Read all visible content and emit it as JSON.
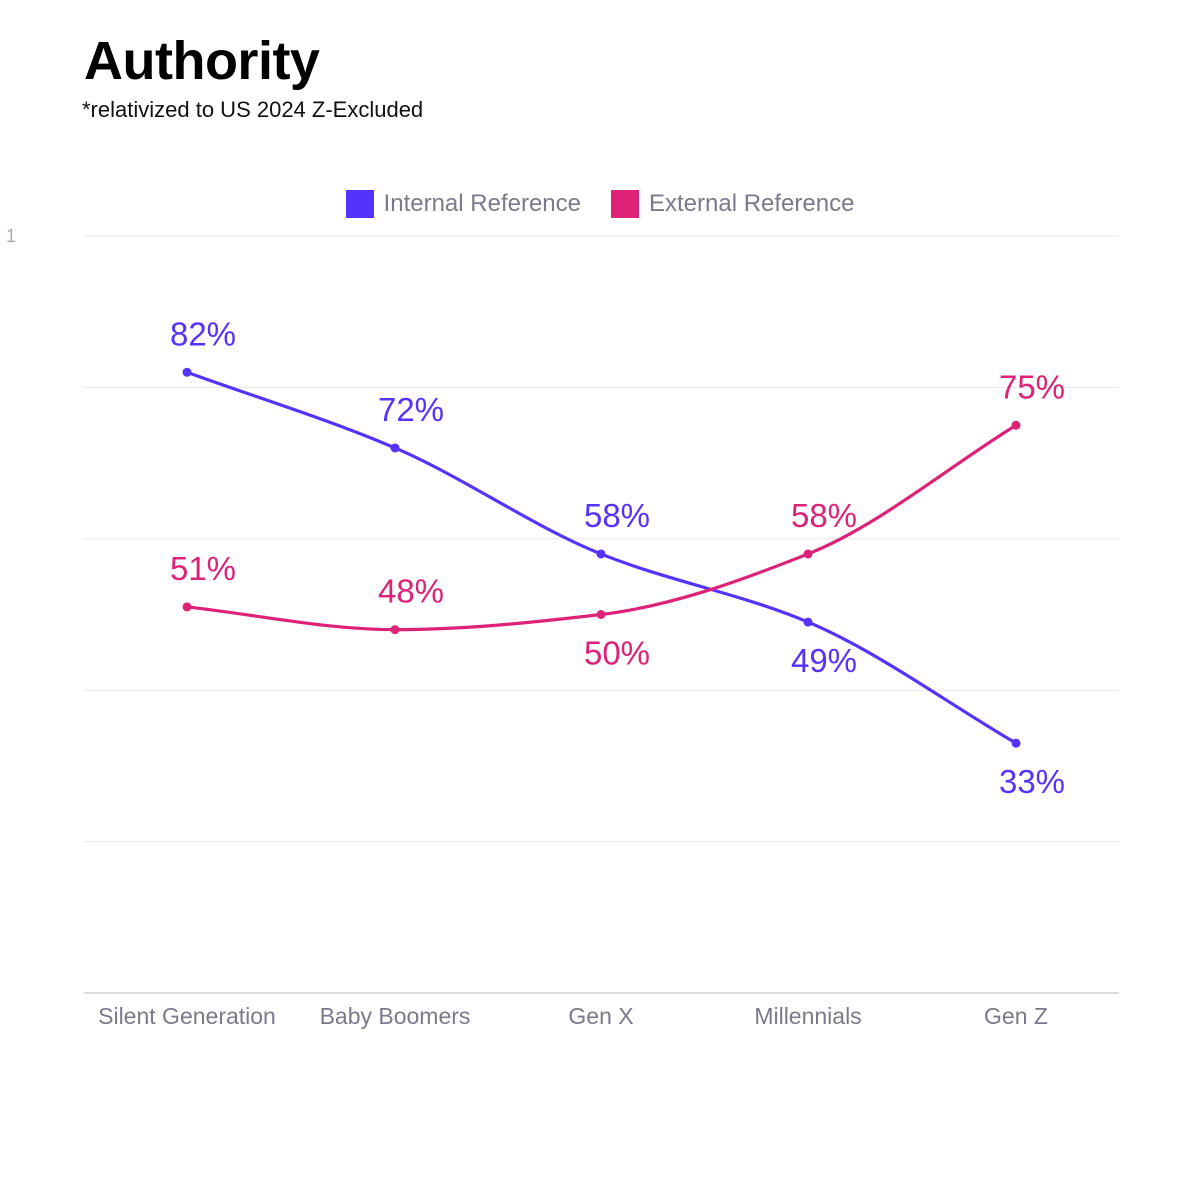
{
  "header": {
    "title": "Authority",
    "subtitle": "*relativized to US 2024 Z-Excluded",
    "stray_label": "1"
  },
  "chart_data": {
    "type": "line",
    "categories": [
      "Silent Generation",
      "Baby Boomers",
      "Gen X",
      "Millennials",
      "Gen Z"
    ],
    "series": [
      {
        "name": "Internal Reference",
        "color": "#5533ff",
        "values": [
          82,
          72,
          58,
          49,
          33
        ],
        "labels": [
          "82%",
          "72%",
          "58%",
          "49%",
          "33%"
        ],
        "label_positions": [
          "above",
          "above",
          "above",
          "below",
          "below"
        ]
      },
      {
        "name": "External Reference",
        "color": "#dd2277",
        "values": [
          51,
          48,
          50,
          58,
          75
        ],
        "labels": [
          "51%",
          "48%",
          "50%",
          "58%",
          "75%"
        ],
        "label_positions": [
          "above",
          "above",
          "below",
          "above",
          "above"
        ]
      }
    ],
    "ylim": [
      0,
      100
    ],
    "y_gridlines": [
      0,
      20,
      40,
      60,
      80,
      100
    ],
    "grid": true,
    "legend_position": "top-center",
    "smooth": true
  }
}
